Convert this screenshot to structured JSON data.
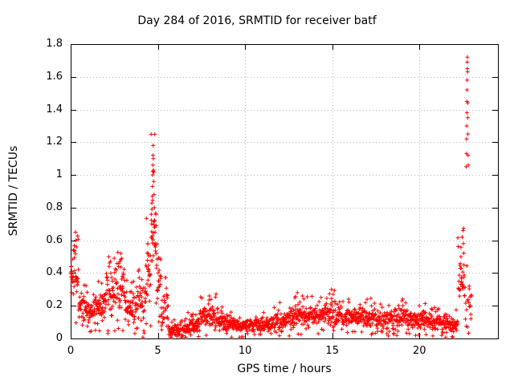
{
  "chart_data": {
    "type": "scatter",
    "title": "Day 284 of 2016, SRMTID for receiver batf",
    "xlabel": "GPS time / hours",
    "ylabel": "SRMTID / TECUs",
    "xlim": [
      0,
      24.5
    ],
    "ylim": [
      0,
      1.8
    ],
    "xticks": [
      [
        0,
        "0"
      ],
      [
        5,
        "5"
      ],
      [
        10,
        "10"
      ],
      [
        15,
        "15"
      ],
      [
        20,
        "20"
      ]
    ],
    "yticks": [
      [
        0,
        "0"
      ],
      [
        0.2,
        "0.2"
      ],
      [
        0.4,
        "0.4"
      ],
      [
        0.6,
        "0.6"
      ],
      [
        0.8,
        "0.8"
      ],
      [
        1.0,
        "1"
      ],
      [
        1.2,
        "1.2"
      ],
      [
        1.4,
        "1.4"
      ],
      [
        1.6,
        "1.6"
      ],
      [
        1.8,
        "1.8"
      ]
    ],
    "grid": true,
    "legend": "none",
    "marker": "plus",
    "marker_color": "#ff0000",
    "axis_color": "#000000",
    "grid_color": "#b8b8b8",
    "background_color": "#ffffff",
    "segments_format": [
      "x_start_hours",
      "x_end_hours",
      "point_count",
      "y_min_TECUs",
      "y_max_TECUs"
    ],
    "segments": [
      [
        0.0,
        0.15,
        14,
        0.32,
        0.46
      ],
      [
        0.15,
        0.45,
        26,
        0.18,
        0.62
      ],
      [
        0.45,
        0.9,
        36,
        0.12,
        0.3
      ],
      [
        0.9,
        1.3,
        32,
        0.08,
        0.24
      ],
      [
        1.3,
        1.9,
        48,
        0.1,
        0.3
      ],
      [
        1.9,
        2.5,
        48,
        0.12,
        0.42
      ],
      [
        2.5,
        3.1,
        48,
        0.12,
        0.5
      ],
      [
        3.1,
        3.7,
        48,
        0.07,
        0.3
      ],
      [
        3.7,
        4.3,
        48,
        0.08,
        0.35
      ],
      [
        4.3,
        4.6,
        26,
        0.15,
        0.6
      ],
      [
        4.6,
        4.9,
        30,
        0.35,
        1.05
      ],
      [
        4.9,
        5.2,
        26,
        0.18,
        0.55
      ],
      [
        5.2,
        5.6,
        30,
        0.08,
        0.3
      ],
      [
        5.6,
        6.6,
        75,
        0.01,
        0.09
      ],
      [
        6.6,
        7.4,
        60,
        0.03,
        0.13
      ],
      [
        7.4,
        8.5,
        80,
        0.05,
        0.22
      ],
      [
        8.5,
        9.3,
        60,
        0.04,
        0.16
      ],
      [
        9.3,
        10.5,
        85,
        0.03,
        0.13
      ],
      [
        10.5,
        11.5,
        72,
        0.04,
        0.14
      ],
      [
        11.5,
        12.5,
        72,
        0.05,
        0.17
      ],
      [
        12.5,
        13.5,
        72,
        0.06,
        0.21
      ],
      [
        13.5,
        14.5,
        72,
        0.07,
        0.21
      ],
      [
        14.5,
        15.5,
        72,
        0.07,
        0.24
      ],
      [
        15.5,
        16.5,
        72,
        0.06,
        0.2
      ],
      [
        16.5,
        17.5,
        72,
        0.06,
        0.2
      ],
      [
        17.5,
        18.5,
        72,
        0.05,
        0.18
      ],
      [
        18.5,
        19.5,
        72,
        0.06,
        0.2
      ],
      [
        19.5,
        20.5,
        72,
        0.05,
        0.18
      ],
      [
        20.5,
        21.5,
        72,
        0.04,
        0.16
      ],
      [
        21.5,
        22.2,
        55,
        0.03,
        0.15
      ],
      [
        22.2,
        22.6,
        30,
        0.12,
        0.55
      ],
      [
        22.6,
        23.0,
        18,
        0.08,
        0.35
      ]
    ],
    "feature_points": [
      [
        0.05,
        0.44
      ],
      [
        0.28,
        0.65
      ],
      [
        0.3,
        0.6
      ],
      [
        0.33,
        0.56
      ],
      [
        2.2,
        0.44
      ],
      [
        2.3,
        0.4
      ],
      [
        2.82,
        0.47
      ],
      [
        2.88,
        0.52
      ],
      [
        2.93,
        0.49
      ],
      [
        4.42,
        0.58
      ],
      [
        4.45,
        0.52
      ],
      [
        4.62,
        0.62
      ],
      [
        4.64,
        0.7
      ],
      [
        4.66,
        0.79
      ],
      [
        4.68,
        0.87
      ],
      [
        4.69,
        0.93
      ],
      [
        4.7,
        1.0
      ],
      [
        4.71,
        1.06
      ],
      [
        4.72,
        1.12
      ],
      [
        4.73,
        1.18
      ],
      [
        4.74,
        1.1
      ],
      [
        4.75,
        1.03
      ],
      [
        4.76,
        0.96
      ],
      [
        4.78,
        0.88
      ],
      [
        4.8,
        0.8
      ],
      [
        4.82,
        0.72
      ],
      [
        4.84,
        0.65
      ],
      [
        4.87,
        0.58
      ],
      [
        4.9,
        0.52
      ],
      [
        7.95,
        0.26
      ],
      [
        8.05,
        0.24
      ],
      [
        12.0,
        0.22
      ],
      [
        13.0,
        0.28
      ],
      [
        14.95,
        0.3
      ],
      [
        15.05,
        0.27
      ],
      [
        17.0,
        0.24
      ],
      [
        19.0,
        0.23
      ],
      [
        22.38,
        0.5
      ],
      [
        22.45,
        0.62
      ],
      [
        22.5,
        0.66
      ],
      [
        22.52,
        0.58
      ],
      [
        22.55,
        0.45
      ],
      [
        22.68,
        1.05
      ],
      [
        22.7,
        1.13
      ],
      [
        22.7,
        1.22
      ],
      [
        22.71,
        1.3
      ],
      [
        22.72,
        1.38
      ],
      [
        22.72,
        1.45
      ],
      [
        22.73,
        1.52
      ],
      [
        22.73,
        1.58
      ],
      [
        22.74,
        1.65
      ],
      [
        22.74,
        1.69
      ],
      [
        22.75,
        1.72
      ],
      [
        22.76,
        1.63
      ],
      [
        22.77,
        1.44
      ],
      [
        22.77,
        1.35
      ],
      [
        22.78,
        1.25
      ],
      [
        22.79,
        1.12
      ],
      [
        22.8,
        1.06
      ],
      [
        22.85,
        0.32
      ],
      [
        22.9,
        0.2
      ],
      [
        22.95,
        0.12
      ]
    ]
  }
}
